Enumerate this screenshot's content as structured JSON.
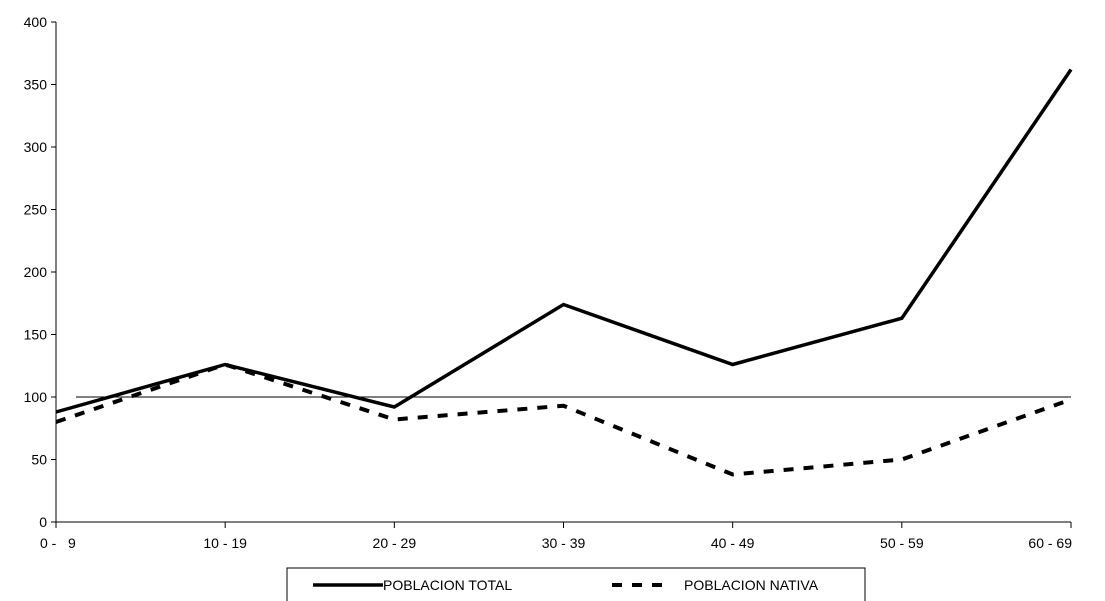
{
  "chart_data": {
    "type": "line",
    "categories": [
      "0 -   9",
      "10 - 19",
      "20 - 29",
      "30 - 39",
      "40 - 49",
      "50 - 59",
      "60 - 69"
    ],
    "series": [
      {
        "name": "POBLACION TOTAL",
        "values": [
          88,
          126,
          92,
          174,
          126,
          163,
          362
        ],
        "style": "solid",
        "color": "#000000"
      },
      {
        "name": "POBLACION NATIVA",
        "values": [
          80,
          126,
          82,
          93,
          38,
          50,
          98
        ],
        "style": "dashed",
        "color": "#000000"
      }
    ],
    "reference_line": 100,
    "ylim": [
      0,
      400
    ],
    "yticks": [
      0,
      50,
      100,
      150,
      200,
      250,
      300,
      350,
      400
    ],
    "legend_position": "bottom-center",
    "grid": false
  }
}
